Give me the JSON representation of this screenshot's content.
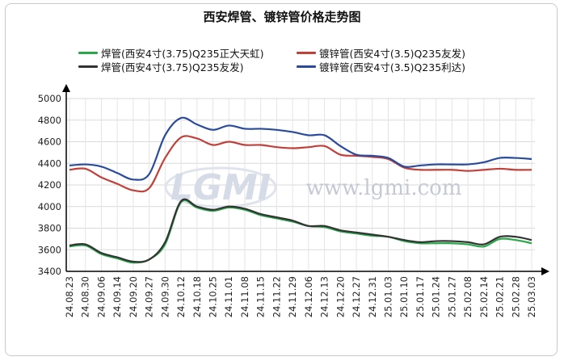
{
  "chart_data": {
    "type": "line",
    "title": "西安焊管、镀锌管价格走势图",
    "xlabel": "",
    "ylabel": "",
    "ylim": [
      3400,
      5000
    ],
    "yticks": [
      3400,
      3600,
      3800,
      4000,
      4200,
      4400,
      4600,
      4800,
      5000
    ],
    "grid": true,
    "legend_position": "top",
    "categories": [
      "24.08.23",
      "24.08.30",
      "24.09.06",
      "24.09.14",
      "24.09.20",
      "24.09.27",
      "24.09.30",
      "24.10.12",
      "24.10.18",
      "24.10.25",
      "24.11.01",
      "24.11.08",
      "24.11.15",
      "24.11.22",
      "24.11.29",
      "24.12.06",
      "24.12.13",
      "24.12.20",
      "24.12.27",
      "24.12.31",
      "25.01.03",
      "25.01.10",
      "25.01.17",
      "25.01.24",
      "25.01.27",
      "25.02.08",
      "25.02.14",
      "25.02.21",
      "25.02.28",
      "25.03.03"
    ],
    "series": [
      {
        "name": "焊管(西安4寸(3.75)Q235正大天虹)",
        "color": "#2aa84a",
        "values": [
          3630,
          3640,
          3560,
          3520,
          3480,
          3510,
          3650,
          4040,
          3990,
          3960,
          3990,
          3970,
          3920,
          3890,
          3860,
          3820,
          3810,
          3770,
          3750,
          3730,
          3720,
          3680,
          3660,
          3660,
          3660,
          3650,
          3630,
          3700,
          3690,
          3660
        ]
      },
      {
        "name": "镀锌管(西安4寸(3.5)Q235友发)",
        "color": "#c0403a",
        "values": [
          4340,
          4350,
          4270,
          4210,
          4150,
          4170,
          4450,
          4640,
          4630,
          4570,
          4600,
          4570,
          4570,
          4550,
          4540,
          4550,
          4560,
          4480,
          4470,
          4460,
          4440,
          4360,
          4340,
          4340,
          4340,
          4330,
          4340,
          4350,
          4340,
          4340
        ]
      },
      {
        "name": "焊管(西安4寸(3.75)Q235友发)",
        "color": "#333333",
        "values": [
          3640,
          3650,
          3570,
          3530,
          3490,
          3510,
          3670,
          4050,
          4000,
          3970,
          4000,
          3980,
          3930,
          3900,
          3870,
          3820,
          3820,
          3780,
          3760,
          3740,
          3720,
          3690,
          3670,
          3680,
          3680,
          3670,
          3650,
          3720,
          3720,
          3690
        ]
      },
      {
        "name": "镀锌管(西安4寸(3.5)Q235利达)",
        "color": "#2a4a9c",
        "values": [
          4380,
          4390,
          4370,
          4310,
          4250,
          4300,
          4660,
          4820,
          4760,
          4710,
          4750,
          4720,
          4720,
          4710,
          4690,
          4660,
          4660,
          4560,
          4480,
          4470,
          4450,
          4370,
          4380,
          4390,
          4390,
          4390,
          4410,
          4450,
          4450,
          4440
        ]
      }
    ]
  },
  "watermark": {
    "logo": "LGMI",
    "site": "www.lgmi.com"
  }
}
